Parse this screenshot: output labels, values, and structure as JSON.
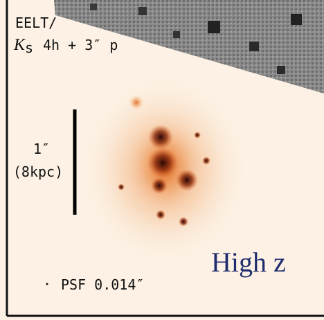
{
  "header": {
    "line1": "EELT/",
    "symbol": "K",
    "subscript": "s",
    "line2": "4h + 3″ p"
  },
  "scale_bar": {
    "label": "1″",
    "sublabel": "(8kpc)"
  },
  "psf_label": "PSF 0.014″",
  "caption": "High z"
}
